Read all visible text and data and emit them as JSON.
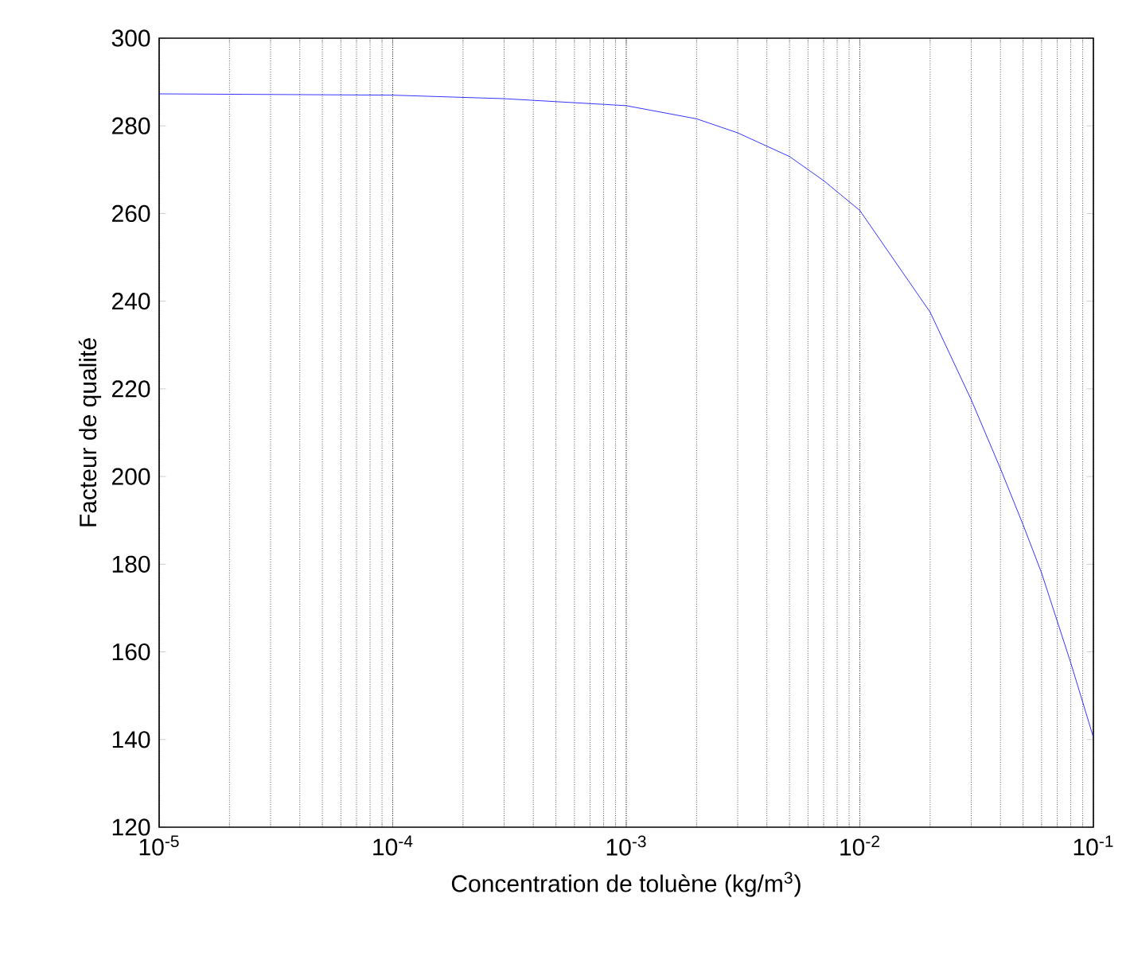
{
  "chart_data": {
    "type": "line",
    "xlabel": "Concentration de toluène (kg/m$^{3}$)",
    "ylabel": "Facteur de qualité",
    "log": "x",
    "x": [
      1e-05,
      0.0001,
      0.0003,
      0.001,
      0.002,
      0.003,
      0.005,
      0.007,
      0.01,
      0.02,
      0.03,
      0.04,
      0.05,
      0.06,
      0.08,
      0.1
    ],
    "series": [
      {
        "color": "#0000ff",
        "values": [
          287.3,
          287.0,
          286.2,
          284.6,
          281.6,
          278.4,
          273,
          267.5,
          260.7,
          237.5,
          217.5,
          201.8,
          189,
          178,
          157.5,
          140.5
        ]
      }
    ],
    "xlim": [
      1e-05,
      0.1
    ],
    "ylim": [
      120,
      300
    ],
    "xticks": [
      {
        "value": 1e-05,
        "label": "10$^{-5}$"
      },
      {
        "value": 0.0001,
        "label": "10$^{-4}$"
      },
      {
        "value": 0.001,
        "label": "10$^{-3}$"
      },
      {
        "value": 0.01,
        "label": "10$^{-2}$"
      },
      {
        "value": 0.1,
        "label": "10$^{-1}$"
      }
    ],
    "yticks": [
      120,
      140,
      160,
      180,
      200,
      220,
      240,
      260,
      280,
      300
    ],
    "grid": "x",
    "marker": "none",
    "line_style": "solid"
  }
}
